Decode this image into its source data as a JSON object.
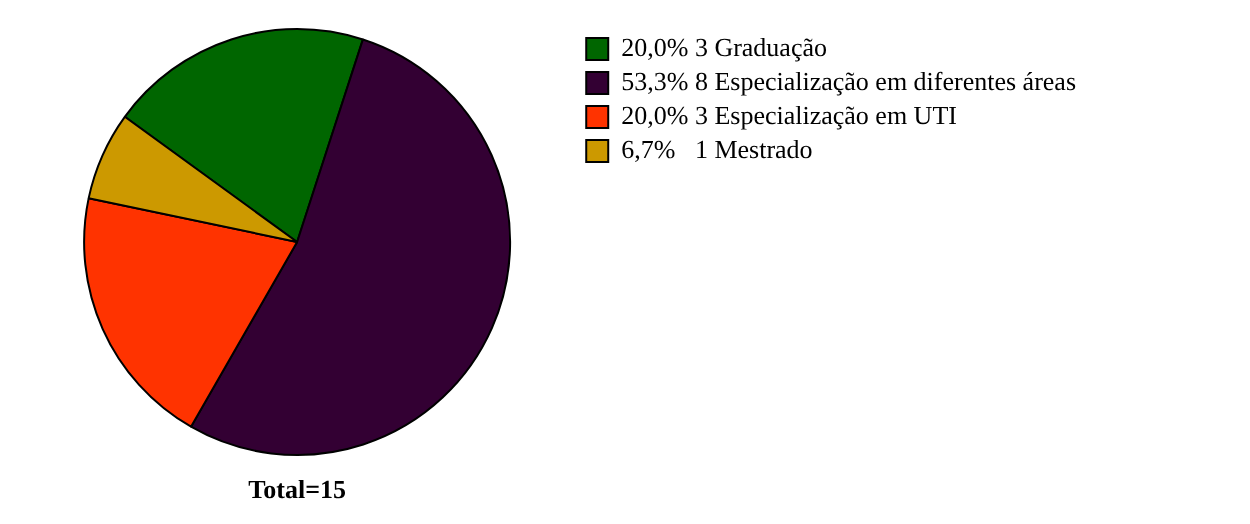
{
  "chart_data": {
    "type": "pie",
    "categories": [
      "20,0% 3 Graduação",
      "53,3% 8 Especialização em diferentes áreas",
      "20,0% 3 Especialização em UTI",
      "6,7%   1 Mestrado"
    ],
    "values": [
      20.0,
      53.3,
      20.0,
      6.7
    ],
    "colors": [
      "#006600",
      "#330033",
      "#ff3300",
      "#cc9900"
    ],
    "legend": "right",
    "annotations": [
      "Total=15"
    ]
  }
}
